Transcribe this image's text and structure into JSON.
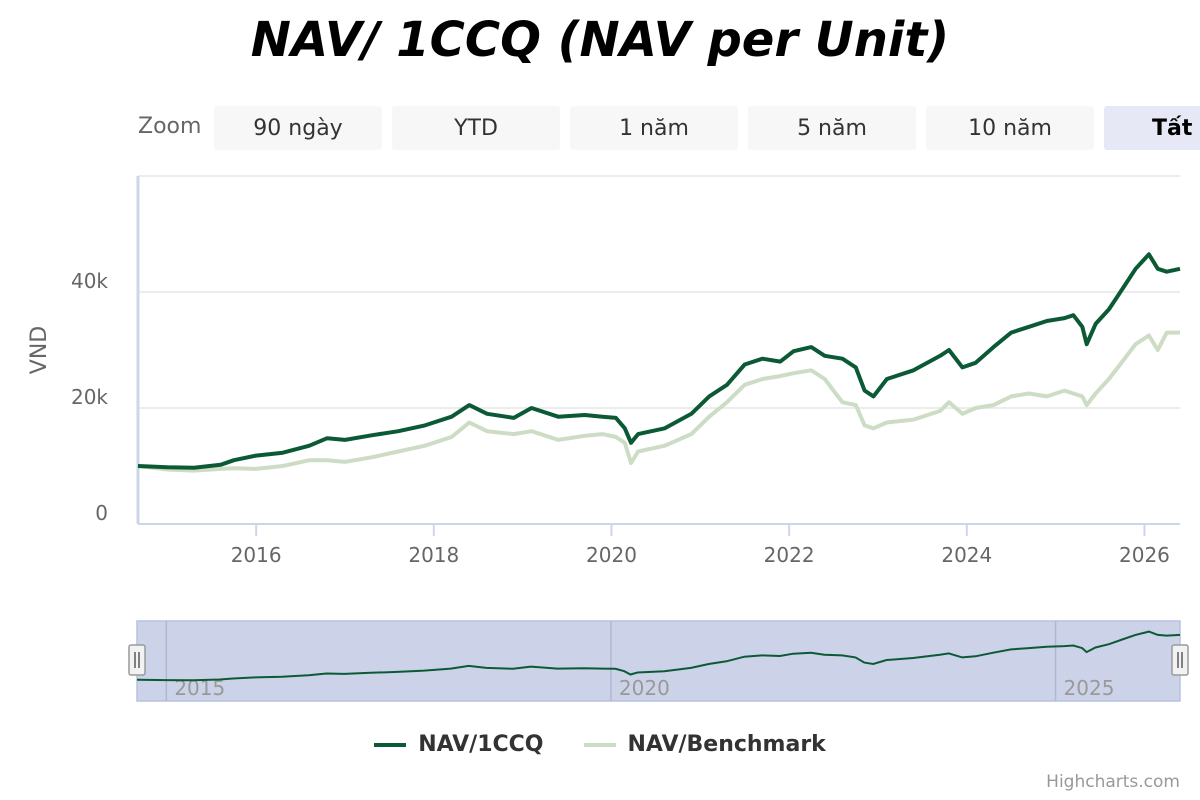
{
  "chart_data": {
    "type": "line",
    "title": "NAV/ 1CCQ (NAV per Unit)",
    "ylabel": "VND",
    "ylim": [
      0,
      60000
    ],
    "xlim": [
      2014.67,
      2026.4
    ],
    "y_ticks": [
      {
        "v": 0,
        "label": "0"
      },
      {
        "v": 20000,
        "label": "20k"
      },
      {
        "v": 40000,
        "label": "40k"
      }
    ],
    "x_ticks": [
      {
        "v": 2016,
        "label": "2016"
      },
      {
        "v": 2018,
        "label": "2018"
      },
      {
        "v": 2020,
        "label": "2020"
      },
      {
        "v": 2022,
        "label": "2022"
      },
      {
        "v": 2024,
        "label": "2024"
      },
      {
        "v": 2026,
        "label": "2026"
      }
    ],
    "navigator_ticks": [
      {
        "v": 2015,
        "label": "2015"
      },
      {
        "v": 2020,
        "label": "2020"
      },
      {
        "v": 2025,
        "label": "2025"
      }
    ],
    "series": [
      {
        "name": "NAV/1CCQ",
        "color": "#0b5a35",
        "points": [
          [
            2014.67,
            10000
          ],
          [
            2015.0,
            9800
          ],
          [
            2015.3,
            9700
          ],
          [
            2015.6,
            10200
          ],
          [
            2015.75,
            11000
          ],
          [
            2016.0,
            11800
          ],
          [
            2016.3,
            12300
          ],
          [
            2016.6,
            13500
          ],
          [
            2016.8,
            14800
          ],
          [
            2017.0,
            14500
          ],
          [
            2017.3,
            15300
          ],
          [
            2017.6,
            16000
          ],
          [
            2017.9,
            17000
          ],
          [
            2018.2,
            18500
          ],
          [
            2018.4,
            20500
          ],
          [
            2018.6,
            19000
          ],
          [
            2018.9,
            18300
          ],
          [
            2019.1,
            20000
          ],
          [
            2019.4,
            18500
          ],
          [
            2019.7,
            18800
          ],
          [
            2019.9,
            18500
          ],
          [
            2020.05,
            18300
          ],
          [
            2020.15,
            16500
          ],
          [
            2020.22,
            14000
          ],
          [
            2020.3,
            15500
          ],
          [
            2020.6,
            16500
          ],
          [
            2020.9,
            19000
          ],
          [
            2021.1,
            22000
          ],
          [
            2021.3,
            24000
          ],
          [
            2021.5,
            27500
          ],
          [
            2021.7,
            28500
          ],
          [
            2021.9,
            28000
          ],
          [
            2022.05,
            29800
          ],
          [
            2022.25,
            30500
          ],
          [
            2022.4,
            29000
          ],
          [
            2022.6,
            28500
          ],
          [
            2022.75,
            27000
          ],
          [
            2022.85,
            23000
          ],
          [
            2022.95,
            22000
          ],
          [
            2023.1,
            25000
          ],
          [
            2023.4,
            26500
          ],
          [
            2023.7,
            29000
          ],
          [
            2023.8,
            30000
          ],
          [
            2023.95,
            27000
          ],
          [
            2024.1,
            27800
          ],
          [
            2024.3,
            30500
          ],
          [
            2024.5,
            33000
          ],
          [
            2024.7,
            34000
          ],
          [
            2024.9,
            35000
          ],
          [
            2025.1,
            35500
          ],
          [
            2025.2,
            36000
          ],
          [
            2025.3,
            34000
          ],
          [
            2025.35,
            31000
          ],
          [
            2025.45,
            34500
          ],
          [
            2025.6,
            37000
          ],
          [
            2025.75,
            40500
          ],
          [
            2025.9,
            44000
          ],
          [
            2026.05,
            46500
          ],
          [
            2026.15,
            44000
          ],
          [
            2026.25,
            43500
          ],
          [
            2026.4,
            44000
          ]
        ]
      },
      {
        "name": "NAV/Benchmark",
        "color": "#cddcc4",
        "points": [
          [
            2014.67,
            10000
          ],
          [
            2015.0,
            9400
          ],
          [
            2015.3,
            9200
          ],
          [
            2015.6,
            9500
          ],
          [
            2015.75,
            9600
          ],
          [
            2016.0,
            9500
          ],
          [
            2016.3,
            10000
          ],
          [
            2016.6,
            11000
          ],
          [
            2016.8,
            11000
          ],
          [
            2017.0,
            10700
          ],
          [
            2017.3,
            11500
          ],
          [
            2017.6,
            12500
          ],
          [
            2017.9,
            13500
          ],
          [
            2018.2,
            15000
          ],
          [
            2018.4,
            17500
          ],
          [
            2018.6,
            16000
          ],
          [
            2018.9,
            15500
          ],
          [
            2019.1,
            16000
          ],
          [
            2019.4,
            14500
          ],
          [
            2019.7,
            15200
          ],
          [
            2019.9,
            15500
          ],
          [
            2020.05,
            15000
          ],
          [
            2020.15,
            14000
          ],
          [
            2020.22,
            10500
          ],
          [
            2020.3,
            12500
          ],
          [
            2020.6,
            13500
          ],
          [
            2020.9,
            15500
          ],
          [
            2021.1,
            18500
          ],
          [
            2021.3,
            21000
          ],
          [
            2021.5,
            24000
          ],
          [
            2021.7,
            25000
          ],
          [
            2021.9,
            25500
          ],
          [
            2022.05,
            26000
          ],
          [
            2022.25,
            26500
          ],
          [
            2022.4,
            25000
          ],
          [
            2022.6,
            21000
          ],
          [
            2022.75,
            20500
          ],
          [
            2022.85,
            17000
          ],
          [
            2022.95,
            16500
          ],
          [
            2023.1,
            17500
          ],
          [
            2023.4,
            18000
          ],
          [
            2023.7,
            19500
          ],
          [
            2023.8,
            21000
          ],
          [
            2023.95,
            19000
          ],
          [
            2024.1,
            20000
          ],
          [
            2024.3,
            20500
          ],
          [
            2024.5,
            22000
          ],
          [
            2024.7,
            22500
          ],
          [
            2024.9,
            22000
          ],
          [
            2025.1,
            23000
          ],
          [
            2025.2,
            22500
          ],
          [
            2025.3,
            22000
          ],
          [
            2025.35,
            20500
          ],
          [
            2025.45,
            22500
          ],
          [
            2025.6,
            25000
          ],
          [
            2025.75,
            28000
          ],
          [
            2025.9,
            31000
          ],
          [
            2026.05,
            32500
          ],
          [
            2026.15,
            30000
          ],
          [
            2026.25,
            33000
          ],
          [
            2026.4,
            33000
          ]
        ]
      }
    ]
  },
  "zoom": {
    "label": "Zoom",
    "buttons": [
      "90 ngày",
      "YTD",
      "1 năm",
      "5 năm",
      "10 năm",
      "Tất"
    ]
  },
  "credits": "Highcharts.com"
}
